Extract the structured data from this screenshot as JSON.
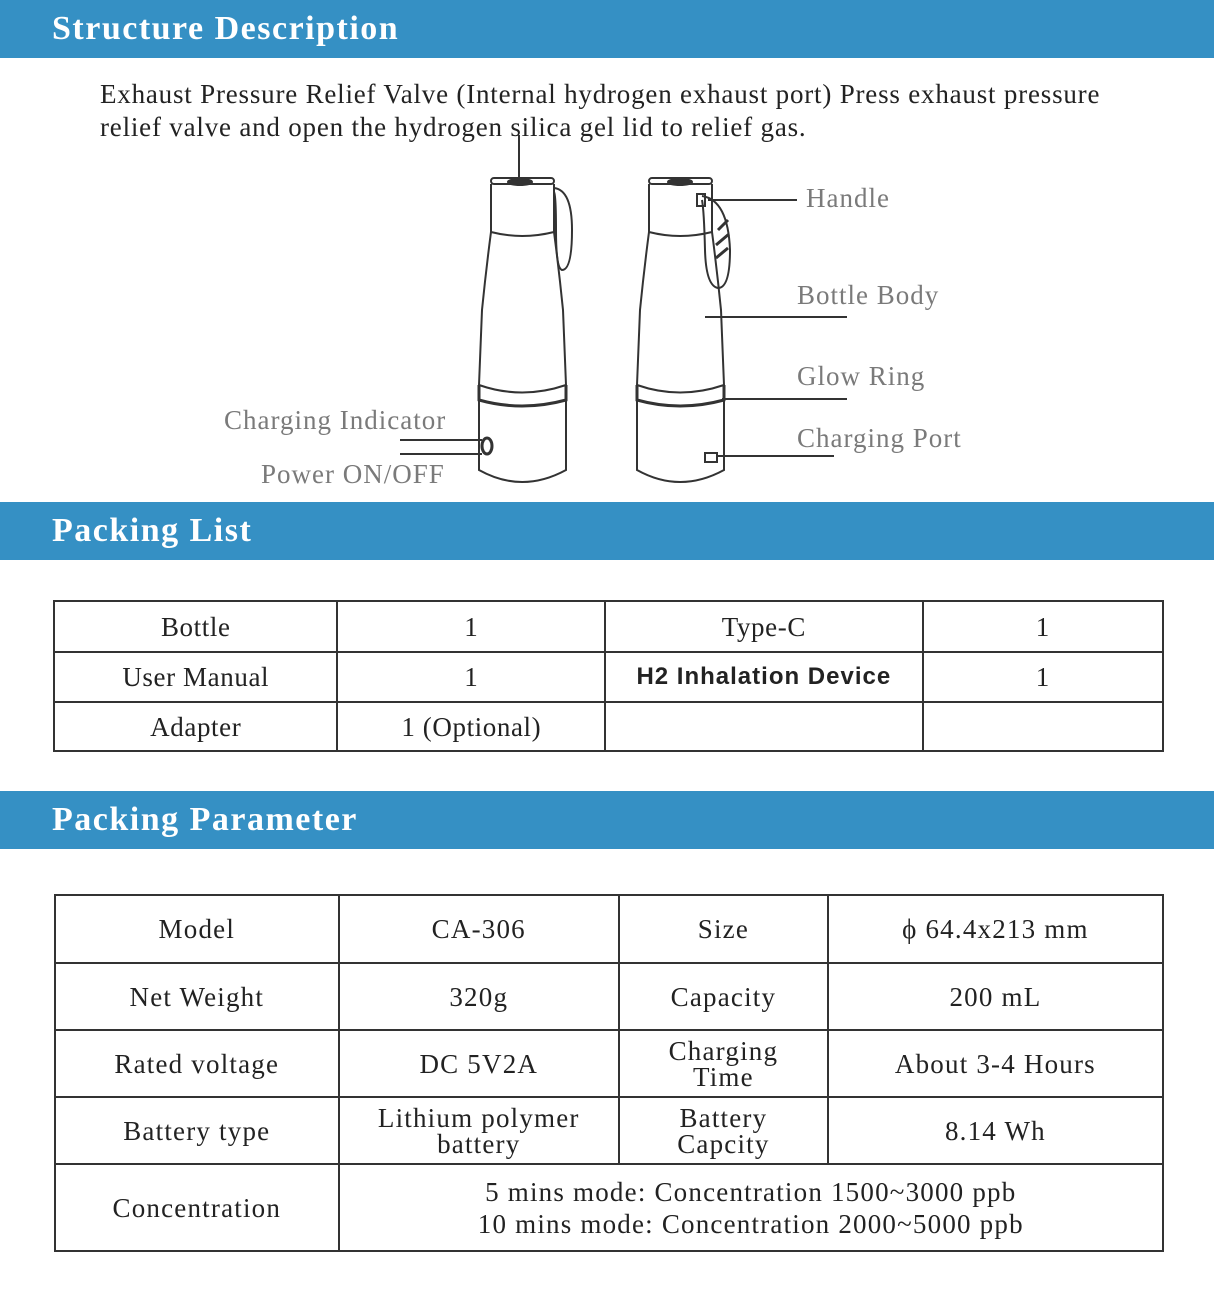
{
  "sections": {
    "structure": "Structure Description",
    "packing_list": "Packing List",
    "packing_parameter": "Packing Parameter"
  },
  "structure": {
    "description": "Exhaust Pressure Relief Valve (Internal hydrogen exhaust port) Press exhaust pressure relief valve and open the hydrogen silica gel lid to relief gas.",
    "labels": {
      "handle": "Handle",
      "bottle_body": "Bottle Body",
      "glow_ring": "Glow Ring",
      "charging_port": "Charging Port",
      "charging_indicator": "Charging Indicator",
      "power": "Power ON/OFF"
    }
  },
  "packing_list": [
    [
      "Bottle",
      "1",
      "Type-C",
      "1"
    ],
    [
      "User Manual",
      "1",
      "H2 Inhalation Device",
      "1"
    ],
    [
      "Adapter",
      "1 (Optional)",
      "",
      ""
    ]
  ],
  "parameters": [
    [
      "Model",
      "CA-306",
      "Size",
      "ϕ 64.4x213 mm"
    ],
    [
      "Net Weight",
      "320g",
      "Capacity",
      "200 mL"
    ],
    [
      "Rated voltage",
      "DC  5V2A",
      "Charging Time",
      "About 3-4 Hours"
    ],
    [
      "Battery type",
      "Lithium polymer battery",
      "Battery Capcity",
      "8.14 Wh"
    ]
  ],
  "concentration": {
    "label": "Concentration",
    "line1": "5 mins mode: Concentration 1500~3000 ppb",
    "line2": "10 mins mode: Concentration 2000~5000 ppb"
  },
  "colors": {
    "banner": "#3590c4",
    "label_gray": "#7a7a7a"
  }
}
